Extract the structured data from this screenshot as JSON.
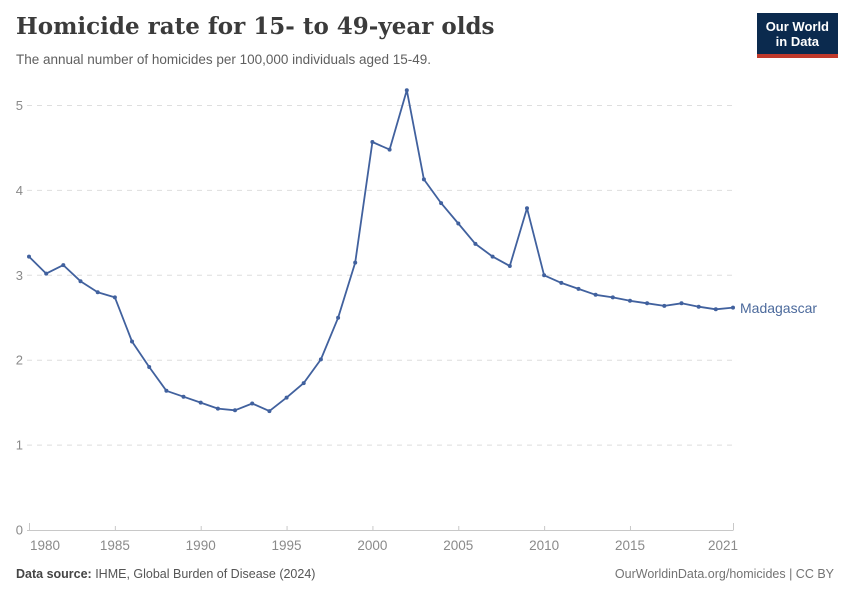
{
  "header": {
    "title": "Homicide rate for 15- to 49-year olds",
    "subtitle": "The annual number of homicides per 100,000 individuals aged 15-49.",
    "logo": {
      "line1": "Our World",
      "line2": "in Data"
    }
  },
  "chart_data": {
    "type": "line",
    "title": "Homicide rate for 15- to 49-year olds",
    "ylabel": "Homicides per 100,000 individuals aged 15-49",
    "xlim": [
      1980,
      2021
    ],
    "ylim": [
      0,
      5.3
    ],
    "grid": "horizontal-dashed",
    "legend": "end-of-line-label",
    "x_ticks": [
      1980,
      1985,
      1990,
      1995,
      2000,
      2005,
      2010,
      2015,
      2021
    ],
    "y_ticks": [
      0,
      1,
      2,
      3,
      4,
      5
    ],
    "x": [
      1980,
      1981,
      1982,
      1983,
      1984,
      1985,
      1986,
      1987,
      1988,
      1989,
      1990,
      1991,
      1992,
      1993,
      1994,
      1995,
      1996,
      1997,
      1998,
      1999,
      2000,
      2001,
      2002,
      2003,
      2004,
      2005,
      2006,
      2007,
      2008,
      2009,
      2010,
      2011,
      2012,
      2013,
      2014,
      2015,
      2016,
      2017,
      2018,
      2019,
      2020,
      2021
    ],
    "series": [
      {
        "name": "Madagascar",
        "color": "#41619e",
        "values": [
          3.22,
          3.02,
          3.12,
          2.93,
          2.8,
          2.74,
          2.22,
          1.92,
          1.64,
          1.57,
          1.5,
          1.43,
          1.41,
          1.49,
          1.4,
          1.56,
          1.73,
          2.01,
          2.5,
          3.15,
          4.57,
          4.48,
          5.18,
          4.13,
          3.85,
          3.61,
          3.37,
          3.22,
          3.11,
          3.79,
          3.0,
          2.91,
          2.84,
          2.77,
          2.74,
          2.7,
          2.67,
          2.64,
          2.67,
          2.63,
          2.6,
          2.62
        ]
      }
    ]
  },
  "footer": {
    "source_label": "Data source:",
    "source_value": " IHME, Global Burden of Disease (2024)",
    "credit": "OurWorldinData.org/homicides | CC BY"
  },
  "colors": {
    "line": "#41619e",
    "entity_label": "#4c6a9c",
    "logo_navy": "#0b2a4e",
    "logo_red": "#c0392b",
    "gridline": "#dedede",
    "axis_line": "#c8c8c8",
    "tick_label": "#8a8a8a",
    "title_text": "#3b3b3b",
    "subtitle_text": "#5f5f5f"
  }
}
